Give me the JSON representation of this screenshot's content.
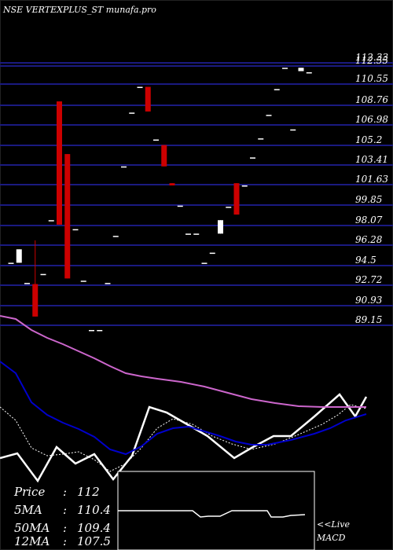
{
  "chart_data": {
    "type": "candlestick",
    "title": "NSE VERTEXPLUS_ST munafa.pro",
    "price_ticks": [
      112.33,
      112.55,
      110.55,
      108.76,
      106.98,
      105.2,
      103.41,
      101.63,
      99.85,
      98.07,
      96.28,
      94.5,
      92.72,
      90.93,
      89.15
    ],
    "tick_labels": [
      "112.33",
      "112.55",
      "110.55",
      "108.76",
      "106.98",
      "105.2",
      "103.41",
      "101.63",
      "99.85",
      "98.07",
      "96.28",
      "94.5",
      "92.72",
      "90.93",
      "89.15"
    ],
    "ylim": [
      88.6,
      113.0
    ],
    "colors": {
      "up": "#ffffff",
      "down": "#cc0000",
      "grid": "#1a1a80",
      "ma_short": "#ffffff",
      "ma_mid": "#0000cc",
      "ma_long": "#cc66cc",
      "background": "#000000"
    },
    "candles": [
      {
        "o": 94.6,
        "h": 94.6,
        "l": 94.6,
        "c": 94.6
      },
      {
        "o": 94.6,
        "h": 95.8,
        "l": 94.6,
        "c": 95.8
      },
      {
        "o": 92.8,
        "h": 92.8,
        "l": 92.8,
        "c": 92.8
      },
      {
        "o": 92.7,
        "h": 96.6,
        "l": 89.8,
        "c": 89.8
      },
      {
        "o": 93.6,
        "h": 93.6,
        "l": 93.6,
        "c": 93.6
      },
      {
        "o": 98.4,
        "h": 98.4,
        "l": 98.4,
        "c": 98.4
      },
      {
        "o": 109.0,
        "h": 109.0,
        "l": 98.0,
        "c": 98.0
      },
      {
        "o": 104.3,
        "h": 104.3,
        "l": 93.2,
        "c": 93.2
      },
      {
        "o": 97.6,
        "h": 97.6,
        "l": 97.6,
        "c": 97.6
      },
      {
        "o": 93.0,
        "h": 93.0,
        "l": 93.0,
        "c": 93.0
      },
      {
        "o": 88.6,
        "h": 88.6,
        "l": 88.6,
        "c": 88.6
      },
      {
        "o": 88.6,
        "h": 88.6,
        "l": 88.6,
        "c": 88.6
      },
      {
        "o": 92.8,
        "h": 92.8,
        "l": 92.8,
        "c": 92.8
      },
      {
        "o": 97.0,
        "h": 97.0,
        "l": 97.0,
        "c": 97.0
      },
      {
        "o": 103.2,
        "h": 103.2,
        "l": 103.2,
        "c": 103.2
      },
      {
        "o": 108.0,
        "h": 108.0,
        "l": 108.0,
        "c": 108.0
      },
      {
        "o": 110.3,
        "h": 110.3,
        "l": 110.3,
        "c": 110.3
      },
      {
        "o": 110.3,
        "h": 110.3,
        "l": 108.1,
        "c": 108.1
      },
      {
        "o": 105.6,
        "h": 105.6,
        "l": 105.6,
        "c": 105.6
      },
      {
        "o": 105.1,
        "h": 105.1,
        "l": 103.2,
        "c": 103.2
      },
      {
        "o": 101.7,
        "h": 101.7,
        "l": 101.5,
        "c": 101.5
      },
      {
        "o": 99.7,
        "h": 99.7,
        "l": 99.7,
        "c": 99.7
      },
      {
        "o": 97.2,
        "h": 97.2,
        "l": 97.2,
        "c": 97.2
      },
      {
        "o": 97.2,
        "h": 97.2,
        "l": 97.2,
        "c": 97.2
      },
      {
        "o": 94.6,
        "h": 94.6,
        "l": 94.6,
        "c": 94.6
      },
      {
        "o": 95.5,
        "h": 95.5,
        "l": 95.5,
        "c": 95.5
      },
      {
        "o": 97.2,
        "h": 98.4,
        "l": 97.2,
        "c": 98.4
      },
      {
        "o": 99.6,
        "h": 99.6,
        "l": 99.6,
        "c": 99.6
      },
      {
        "o": 101.7,
        "h": 101.7,
        "l": 98.9,
        "c": 98.9
      },
      {
        "o": 101.5,
        "h": 101.5,
        "l": 101.5,
        "c": 101.5
      },
      {
        "o": 104.0,
        "h": 104.0,
        "l": 104.0,
        "c": 104.0
      },
      {
        "o": 105.7,
        "h": 105.7,
        "l": 105.7,
        "c": 105.7
      },
      {
        "o": 107.8,
        "h": 107.8,
        "l": 107.8,
        "c": 107.8
      },
      {
        "o": 110.1,
        "h": 110.1,
        "l": 110.1,
        "c": 110.1
      },
      {
        "o": 112.0,
        "h": 112.0,
        "l": 112.0,
        "c": 112.0
      },
      {
        "o": 106.5,
        "h": 106.5,
        "l": 106.5,
        "c": 106.5
      },
      {
        "o": 111.7,
        "h": 112.0,
        "l": 111.7,
        "c": 112.0
      },
      {
        "o": 111.6,
        "h": 111.6,
        "l": 111.6,
        "c": 111.6
      }
    ],
    "ma_series": [
      {
        "label": "short",
        "color": "#ffffff",
        "points": [
          [
            0,
            583
          ],
          [
            22,
            577
          ],
          [
            48,
            612
          ],
          [
            72,
            569
          ],
          [
            96,
            590
          ],
          [
            120,
            578
          ],
          [
            144,
            610
          ],
          [
            168,
            580
          ],
          [
            190,
            518
          ],
          [
            212,
            525
          ],
          [
            238,
            540
          ],
          [
            264,
            555
          ],
          [
            298,
            583
          ],
          [
            320,
            570
          ],
          [
            348,
            555
          ],
          [
            370,
            555
          ],
          [
            400,
            530
          ],
          [
            432,
            502
          ],
          [
            452,
            530
          ],
          [
            466,
            505
          ]
        ]
      },
      {
        "label": "short-dotted",
        "color": "#ffffff",
        "dashed": true,
        "points": [
          [
            0,
            518
          ],
          [
            20,
            535
          ],
          [
            40,
            570
          ],
          [
            60,
            580
          ],
          [
            80,
            578
          ],
          [
            100,
            575
          ],
          [
            120,
            585
          ],
          [
            140,
            600
          ],
          [
            160,
            590
          ],
          [
            180,
            570
          ],
          [
            200,
            545
          ],
          [
            220,
            533
          ],
          [
            245,
            540
          ],
          [
            270,
            555
          ],
          [
            295,
            565
          ],
          [
            320,
            572
          ],
          [
            350,
            565
          ],
          [
            380,
            553
          ],
          [
            410,
            540
          ],
          [
            430,
            528
          ],
          [
            446,
            515
          ],
          [
            466,
            520
          ]
        ]
      },
      {
        "label": "mid",
        "color": "#0000cc",
        "points": [
          [
            0,
            460
          ],
          [
            20,
            475
          ],
          [
            40,
            512
          ],
          [
            60,
            528
          ],
          [
            80,
            538
          ],
          [
            100,
            546
          ],
          [
            120,
            556
          ],
          [
            140,
            572
          ],
          [
            160,
            578
          ],
          [
            180,
            568
          ],
          [
            200,
            552
          ],
          [
            220,
            545
          ],
          [
            240,
            543
          ],
          [
            260,
            549
          ],
          [
            280,
            555
          ],
          [
            300,
            562
          ],
          [
            320,
            566
          ],
          [
            340,
            566
          ],
          [
            370,
            560
          ],
          [
            400,
            552
          ],
          [
            420,
            545
          ],
          [
            440,
            535
          ],
          [
            466,
            527
          ]
        ]
      },
      {
        "label": "long",
        "color": "#cc66cc",
        "points": [
          [
            0,
            402
          ],
          [
            20,
            406
          ],
          [
            40,
            420
          ],
          [
            60,
            430
          ],
          [
            80,
            438
          ],
          [
            100,
            447
          ],
          [
            120,
            456
          ],
          [
            140,
            466
          ],
          [
            160,
            475
          ],
          [
            180,
            479
          ],
          [
            200,
            482
          ],
          [
            230,
            486
          ],
          [
            260,
            492
          ],
          [
            290,
            500
          ],
          [
            320,
            508
          ],
          [
            350,
            513
          ],
          [
            380,
            517
          ],
          [
            410,
            518
          ],
          [
            440,
            518
          ],
          [
            466,
            518
          ]
        ]
      }
    ],
    "macd_line": [
      [
        150,
        650
      ],
      [
        195,
        650
      ],
      [
        245,
        650
      ],
      [
        255,
        658
      ],
      [
        265,
        657
      ],
      [
        280,
        657
      ],
      [
        295,
        650
      ],
      [
        340,
        650
      ],
      [
        345,
        658
      ],
      [
        360,
        658
      ],
      [
        370,
        656
      ],
      [
        388,
        655
      ]
    ],
    "stats": [
      {
        "label": "Price",
        "value": "112"
      },
      {
        "label": "5MA",
        "value": "110.4"
      },
      {
        "label": "50MA",
        "value": "109.4"
      },
      {
        "label": "12MA",
        "value": "107.5"
      }
    ],
    "macd_label_1": "<<Live",
    "macd_label_2": "MACD"
  }
}
